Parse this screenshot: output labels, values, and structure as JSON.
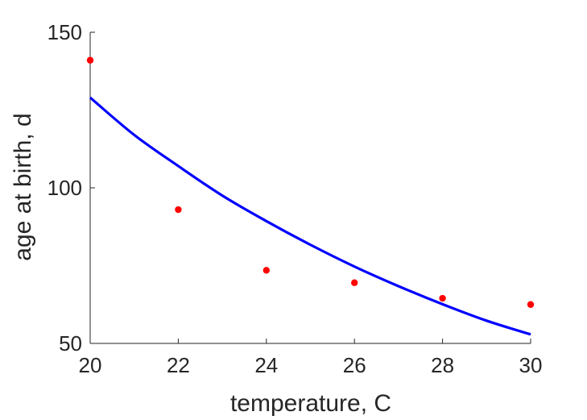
{
  "chart_data": {
    "type": "scatter",
    "xlabel": "temperature, C",
    "ylabel": "age at birth, d",
    "xlim": [
      20,
      30
    ],
    "ylim": [
      50,
      150
    ],
    "xticks": [
      20,
      22,
      24,
      26,
      28,
      30
    ],
    "yticks": [
      50,
      100,
      150
    ],
    "grid": false,
    "legend": "none",
    "series": [
      {
        "type": "scatter",
        "color": "#ff0000",
        "x": [
          20,
          22,
          24,
          26,
          28,
          30
        ],
        "y": [
          141,
          93,
          73.5,
          69.5,
          64.5,
          62.5
        ]
      },
      {
        "type": "line",
        "color": "#0000ff",
        "x": [
          20,
          21,
          22,
          23,
          24,
          25,
          26,
          27,
          28,
          29,
          30
        ],
        "y": [
          129,
          117,
          107,
          97.5,
          89.3,
          81.7,
          74.7,
          68.4,
          62.6,
          57.3,
          52.9
        ]
      }
    ]
  }
}
